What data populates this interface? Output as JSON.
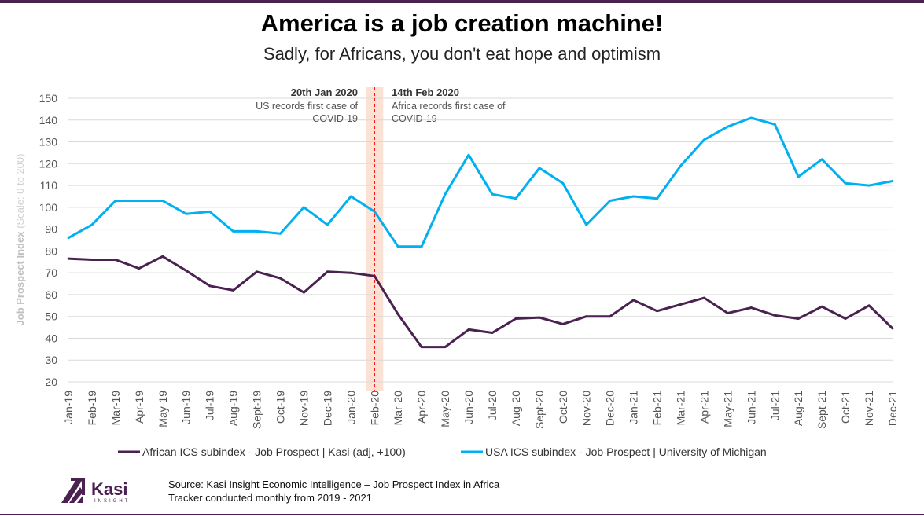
{
  "title": "America is a job creation machine!",
  "subtitle": "Sadly, for Africans, you don't eat hope and optimism",
  "source_line1": "Source: Kasi Insight Economic Intelligence – Job Prospect Index in Africa",
  "source_line2": "Tracker conducted monthly from 2019 - 2021",
  "logo": {
    "name": "Kasi",
    "tagline": "INSIGHT"
  },
  "annotations": [
    {
      "date": "20th Jan 2020",
      "sup": "th",
      "day": "20",
      "rest": " Jan 2020",
      "text1": "US records first case of",
      "text2": "COVID-19"
    },
    {
      "date": "14th Feb 2020",
      "sup": "th",
      "day": "14",
      "rest": " Feb 2020",
      "text1": "Africa records first case of",
      "text2": "COVID-19"
    }
  ],
  "chart_data": {
    "type": "line",
    "ylabel": "Job Prospect Index",
    "ylabel_note": "(Scale: 0 to 200)",
    "ylim": [
      20,
      150
    ],
    "yticks": [
      20,
      30,
      40,
      50,
      60,
      70,
      80,
      90,
      100,
      110,
      120,
      130,
      140,
      150
    ],
    "grid": true,
    "legend_position": "bottom",
    "highlight_band": "Jan-20 to Feb-20",
    "categories": [
      "Jan-19",
      "Feb-19",
      "Mar-19",
      "Apr-19",
      "May-19",
      "Jun-19",
      "Jul-19",
      "Aug-19",
      "Sept-19",
      "Oct-19",
      "Nov-19",
      "Dec-19",
      "Jan-20",
      "Feb-20",
      "Mar-20",
      "Apr-20",
      "May-20",
      "Jun-20",
      "Jul-20",
      "Aug-20",
      "Sept-20",
      "Oct-20",
      "Nov-20",
      "Dec-20",
      "Jan-21",
      "Feb-21",
      "Mar-21",
      "Apr-21",
      "May-21",
      "Jun-21",
      "Jul-21",
      "Aug-21",
      "Sept-21",
      "Oct-21",
      "Nov-21",
      "Dec-21"
    ],
    "series": [
      {
        "name": "African ICS subindex  - Job Prospect | Kasi (adj, +100)",
        "color": "#4a2150",
        "values": [
          76.5,
          76,
          76,
          72,
          77.5,
          71,
          64,
          62,
          70.5,
          67.5,
          61,
          70.5,
          70,
          68.5,
          51,
          36,
          36,
          44,
          42.5,
          49,
          49.5,
          46.5,
          50,
          50,
          57.5,
          52.5,
          55.5,
          58.5,
          51.5,
          54,
          50.5,
          49,
          54.5,
          49,
          55,
          44.5
        ]
      },
      {
        "name": "USA ICS subindex - Job Prospect | University of Michigan",
        "color": "#00b0f0",
        "values": [
          86,
          92,
          103,
          103,
          103,
          97,
          98,
          89,
          89,
          88,
          100,
          92,
          105,
          98,
          82,
          82,
          106,
          124,
          106,
          104,
          118,
          111,
          92,
          103,
          105,
          104,
          119,
          131,
          137,
          141,
          138,
          114,
          122,
          111,
          110,
          112
        ]
      }
    ]
  }
}
